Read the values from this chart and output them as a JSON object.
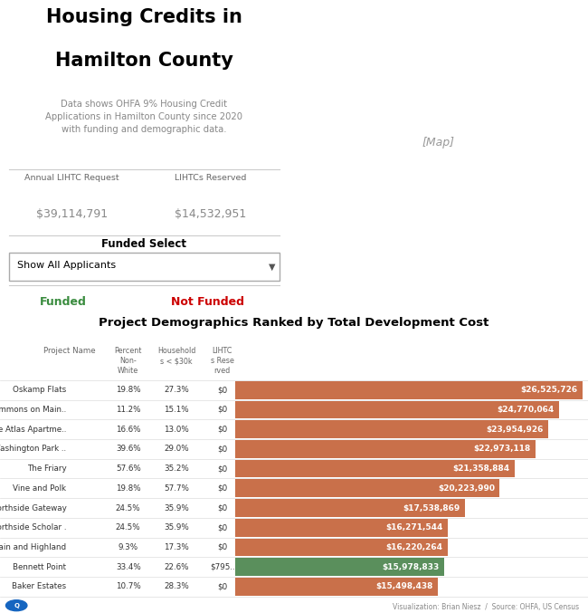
{
  "title_line1": "Housing Credits in",
  "title_line2": "Hamilton County",
  "subtitle": "Data shows OHFA 9% Housing Credit\nApplications in Hamilton County since 2020\nwith funding and demographic data.",
  "annual_lihtc_label": "Annual LIHTC Request",
  "lihtcs_reserved_label": "LIHTCs Reserved",
  "annual_lihtc_value": "$39,114,791",
  "lihtcs_reserved_value": "$14,532,951",
  "funded_select_label": "Funded Select",
  "dropdown_text": "Show All Applicants",
  "funded_text": "Funded",
  "not_funded_text": "Not Funded",
  "funded_color": "#3a8c3f",
  "not_funded_color": "#cc0000",
  "chart_title": "Project Demographics Ranked by Total Development Cost",
  "projects": [
    {
      "name": "Oskamp Flats",
      "pct_nonwhite": "19.8%",
      "households": "27.3%",
      "lihtcs": "$0",
      "cost": 26525726,
      "cost_str": "$26,525,726",
      "funded": false
    },
    {
      "name": "Commons on Main..",
      "pct_nonwhite": "11.2%",
      "households": "15.1%",
      "lihtcs": "$0",
      "cost": 24770064,
      "cost_str": "$24,770,064",
      "funded": false
    },
    {
      "name": "The Atlas Apartme..",
      "pct_nonwhite": "16.6%",
      "households": "13.0%",
      "lihtcs": "$0",
      "cost": 23954926,
      "cost_str": "$23,954,926",
      "funded": false
    },
    {
      "name": "Washington Park ..",
      "pct_nonwhite": "39.6%",
      "households": "29.0%",
      "lihtcs": "$0",
      "cost": 22973118,
      "cost_str": "$22,973,118",
      "funded": false
    },
    {
      "name": "The Friary",
      "pct_nonwhite": "57.6%",
      "households": "35.2%",
      "lihtcs": "$0",
      "cost": 21358884,
      "cost_str": "$21,358,884",
      "funded": false
    },
    {
      "name": "Vine and Polk",
      "pct_nonwhite": "19.8%",
      "households": "57.7%",
      "lihtcs": "$0",
      "cost": 20223990,
      "cost_str": "$20,223,990",
      "funded": false
    },
    {
      "name": "Northside Gateway",
      "pct_nonwhite": "24.5%",
      "households": "35.9%",
      "lihtcs": "$0",
      "cost": 17538869,
      "cost_str": "$17,538,869",
      "funded": false
    },
    {
      "name": "Northside Scholar .",
      "pct_nonwhite": "24.5%",
      "households": "35.9%",
      "lihtcs": "$0",
      "cost": 16271544,
      "cost_str": "$16,271,544",
      "funded": false
    },
    {
      "name": "Main and Highland",
      "pct_nonwhite": "9.3%",
      "households": "17.3%",
      "lihtcs": "$0",
      "cost": 16220264,
      "cost_str": "$16,220,264",
      "funded": false
    },
    {
      "name": "Bennett Point",
      "pct_nonwhite": "33.4%",
      "households": "22.6%",
      "lihtcs": "$795..",
      "cost": 15978833,
      "cost_str": "$15,978,833",
      "funded": true
    },
    {
      "name": "Baker Estates",
      "pct_nonwhite": "10.7%",
      "households": "28.3%",
      "lihtcs": "$0",
      "cost": 15498438,
      "cost_str": "$15,498,438",
      "funded": false
    }
  ],
  "bar_color_not_funded": "#c9704a",
  "bar_color_funded": "#5a8f5c",
  "bar_text_color": "#ffffff",
  "background_color": "#ffffff",
  "divider_color": "#cccccc",
  "row_line_color": "#dddddd",
  "footer_text": "Visualization: Brian Niesz  /  Source: OHFA, US Census",
  "map_placeholder_color": "#d8d8d8"
}
